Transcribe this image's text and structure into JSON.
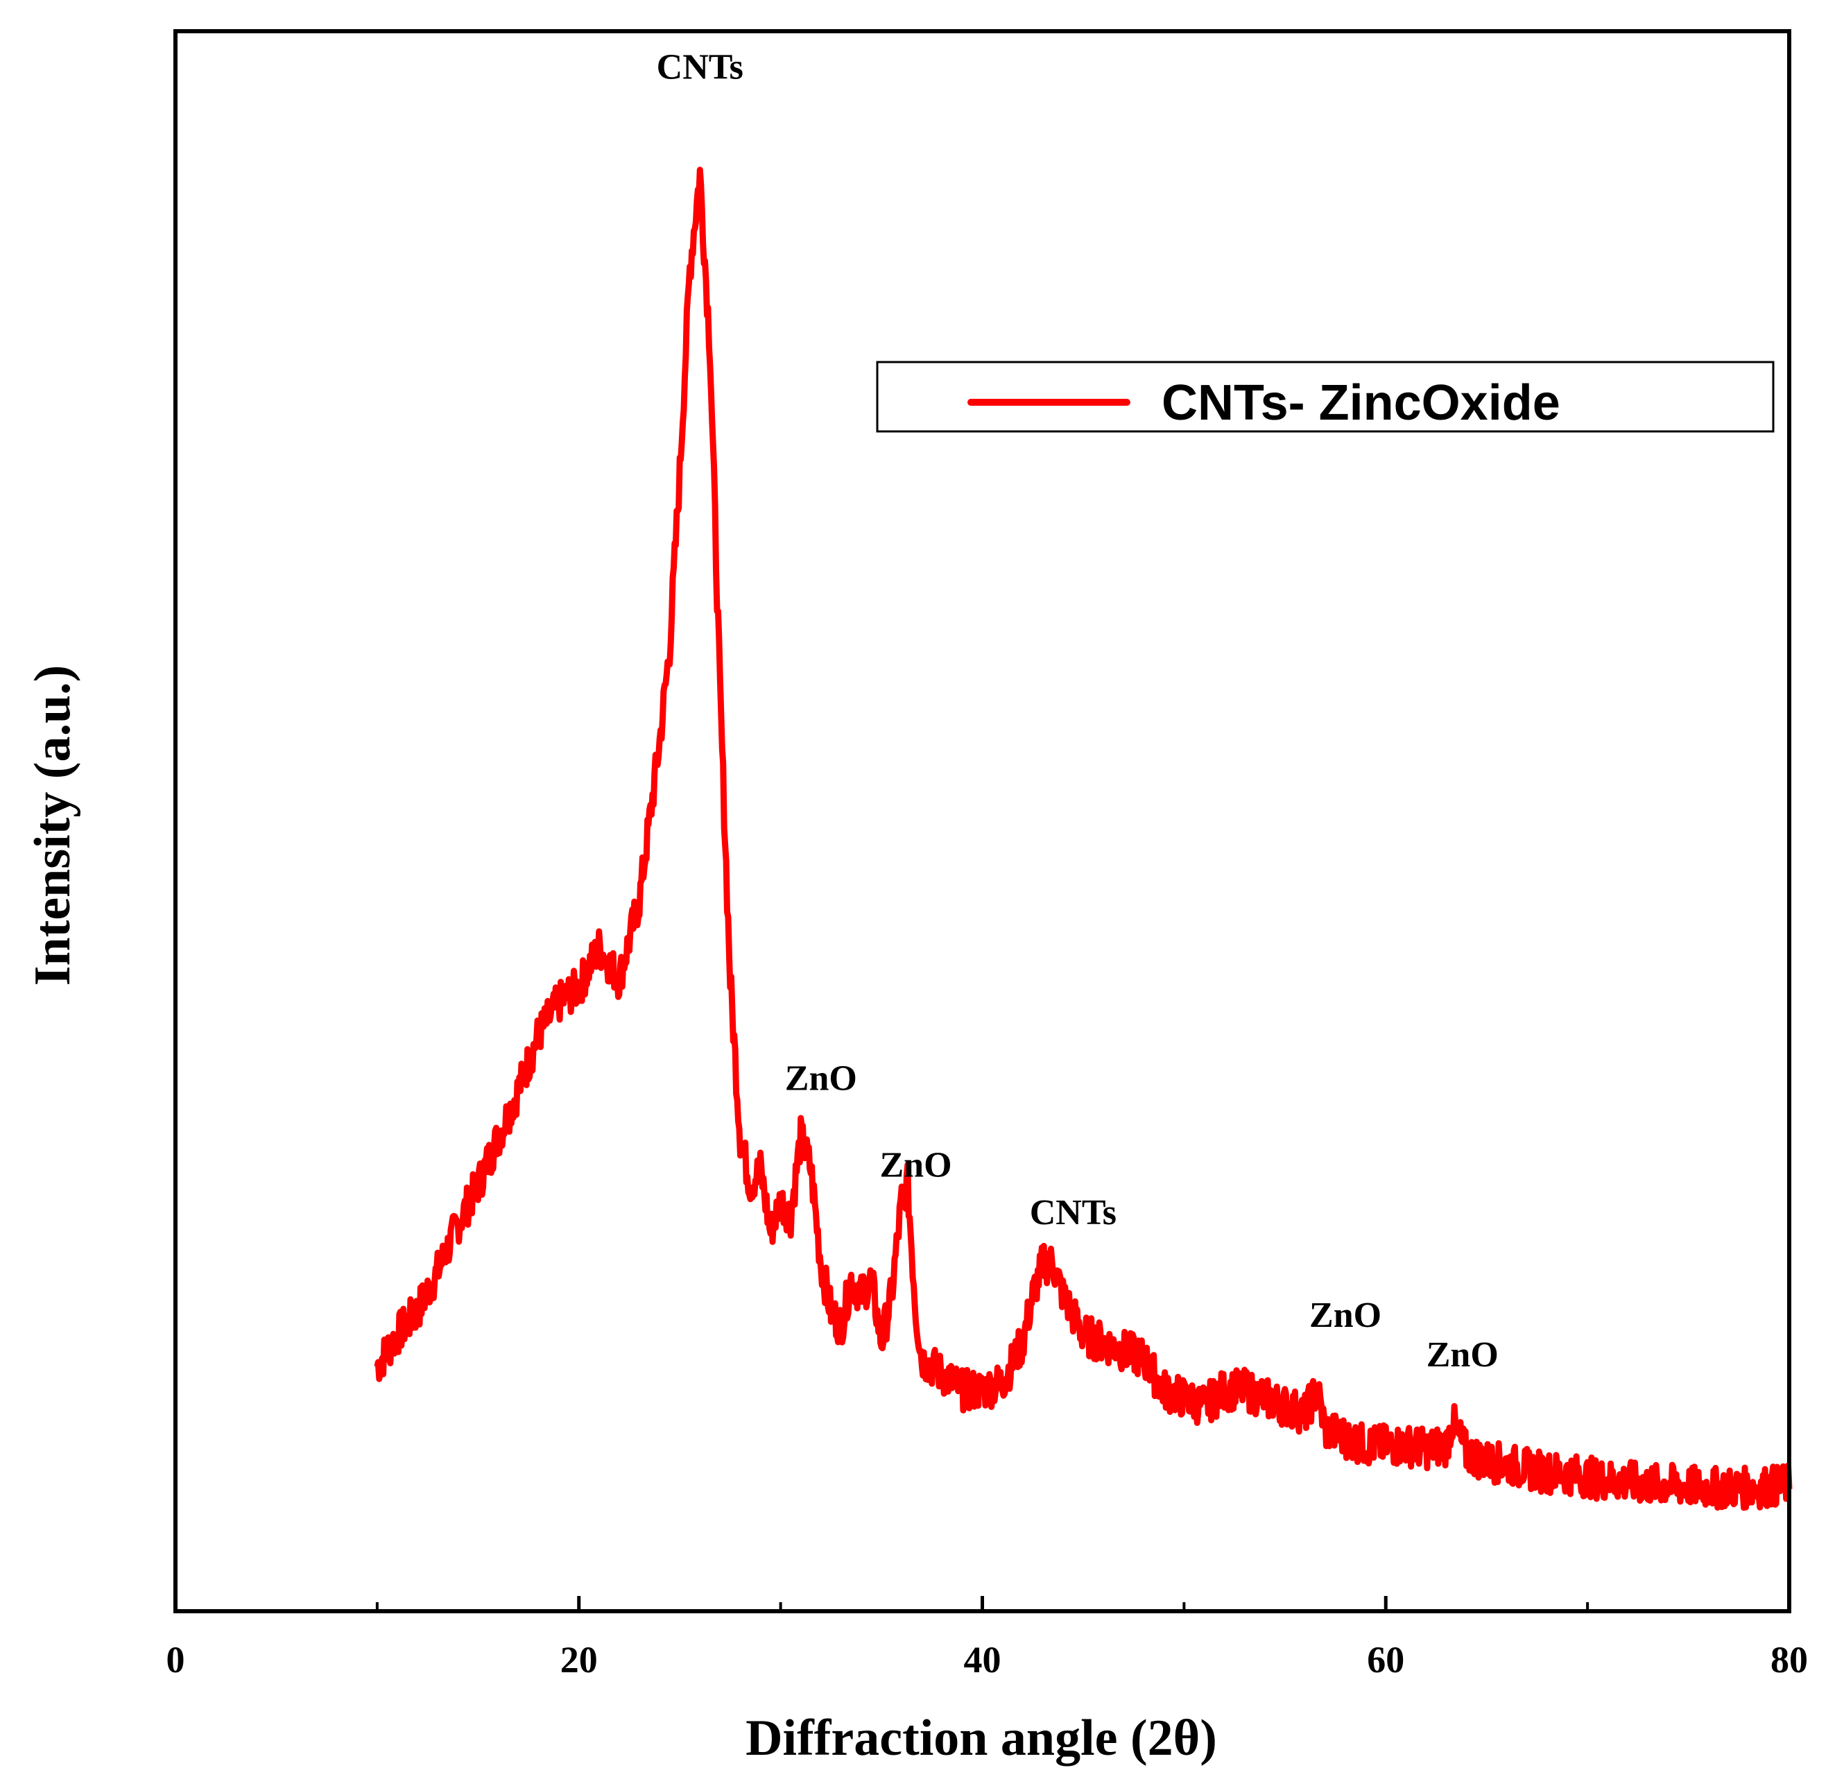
{
  "chart_data": {
    "type": "line",
    "title": "",
    "xlabel": "Diffraction angle (2θ)",
    "ylabel": "Intensity (a.u.)",
    "xlim": [
      0,
      80
    ],
    "ylim": [
      0,
      100
    ],
    "x_ticks": [
      0,
      20,
      40,
      60,
      80
    ],
    "x_ticks_minor": [
      10,
      30,
      50,
      70
    ],
    "x_tick_labels": [
      "0",
      "20",
      "40",
      "60",
      "80"
    ],
    "grid": false,
    "legend": {
      "position": "top-right",
      "entries": [
        "CNTs- ZincOxide"
      ]
    },
    "series": [
      {
        "name": "CNTs- ZincOxide",
        "color": "#ff0000",
        "x": [
          10,
          11,
          12,
          13,
          14,
          15,
          16,
          17,
          18,
          19,
          20,
          21,
          22,
          23,
          24,
          24.5,
          25,
          25.5,
          26,
          26.5,
          27,
          27.5,
          28,
          28.5,
          29,
          29.5,
          30,
          30.5,
          31,
          31.5,
          32,
          32.5,
          33,
          33.5,
          34,
          34.5,
          35,
          35.5,
          36,
          36.3,
          36.7,
          37,
          38,
          39,
          40,
          41,
          42,
          42.5,
          43,
          43.5,
          44,
          45,
          46,
          47,
          48,
          49,
          50,
          51,
          52,
          53,
          54,
          55,
          56,
          56.6,
          57,
          58,
          59,
          60,
          61,
          62,
          63,
          63.3,
          64,
          65,
          66,
          67,
          68,
          69,
          70,
          71,
          72,
          73,
          74,
          75,
          76,
          77,
          78,
          79,
          80
        ],
        "y": [
          15.5,
          17.5,
          19,
          21.5,
          24.5,
          27,
          30,
          33,
          36.5,
          38.5,
          39.5,
          42,
          40,
          45,
          55,
          61,
          72,
          85,
          91,
          80,
          58,
          40,
          30,
          27,
          28,
          24,
          26,
          25,
          30,
          28,
          22,
          19,
          18,
          21,
          20,
          21,
          17,
          20,
          26,
          27,
          19,
          16,
          15,
          14,
          14,
          14.5,
          17,
          20,
          22,
          22,
          20,
          17.5,
          17,
          16.5,
          16,
          14,
          13.5,
          13,
          14,
          14,
          13.5,
          13,
          12.5,
          14,
          11.5,
          11,
          10.5,
          10.5,
          10.5,
          10.3,
          10.5,
          12,
          10,
          9.5,
          9.3,
          9,
          8.8,
          8.7,
          8.5,
          8.3,
          8.2,
          8,
          8,
          7.9,
          7.8,
          7.8,
          7.8,
          7.9,
          8
        ]
      }
    ],
    "annotations": [
      {
        "text": "CNTs",
        "x": 26,
        "y": 97
      },
      {
        "text": "ZnO",
        "x": 32,
        "y": 33
      },
      {
        "text": "ZnO",
        "x": 36.7,
        "y": 27.5
      },
      {
        "text": "CNTs",
        "x": 44.5,
        "y": 24.5
      },
      {
        "text": "ZnO",
        "x": 58,
        "y": 18
      },
      {
        "text": "ZnO",
        "x": 63.8,
        "y": 15.5
      }
    ]
  }
}
